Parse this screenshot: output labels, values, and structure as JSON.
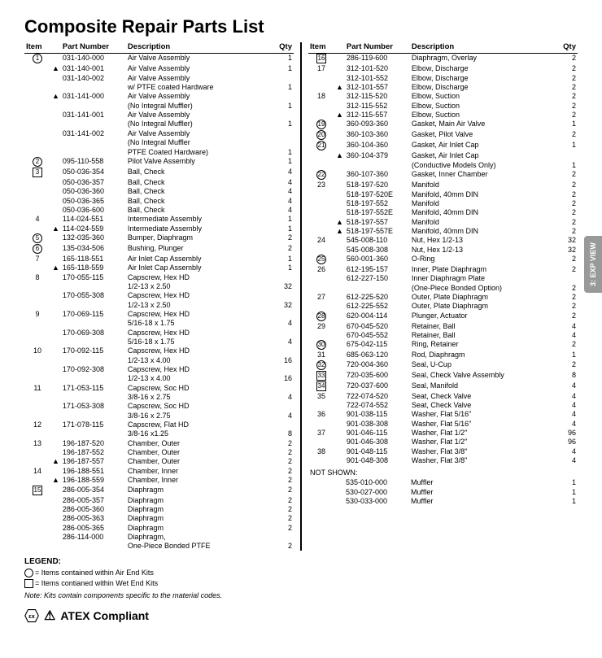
{
  "title": "Composite Repair Parts List",
  "headers": {
    "item": "Item",
    "pn": "Part Number",
    "desc": "Description",
    "qty": "Qty"
  },
  "left": [
    {
      "i": "1",
      "m": "circ",
      "a": "",
      "p": "031-140-000",
      "d": "Air Valve Assembly",
      "q": "1"
    },
    {
      "i": "",
      "m": "",
      "a": "A",
      "p": "031-140-001",
      "d": "Air Valve Assembly",
      "q": "1"
    },
    {
      "i": "",
      "m": "",
      "a": "",
      "p": "031-140-002",
      "d": "Air Valve Assembly",
      "q": ""
    },
    {
      "i": "",
      "m": "",
      "a": "",
      "p": "",
      "d": "w/ PTFE coated Hardware",
      "q": "1"
    },
    {
      "i": "",
      "m": "",
      "a": "A",
      "p": "031-141-000",
      "d": "Air Valve Assembly",
      "q": ""
    },
    {
      "i": "",
      "m": "",
      "a": "",
      "p": "",
      "d": "(No Integral Muffler)",
      "q": "1"
    },
    {
      "i": "",
      "m": "",
      "a": "",
      "p": "031-141-001",
      "d": "Air Valve Assembly",
      "q": ""
    },
    {
      "i": "",
      "m": "",
      "a": "",
      "p": "",
      "d": "(No Integral Muffler)",
      "q": "1"
    },
    {
      "i": "",
      "m": "",
      "a": "",
      "p": "031-141-002",
      "d": "Air Valve Assembly",
      "q": ""
    },
    {
      "i": "",
      "m": "",
      "a": "",
      "p": "",
      "d": "(No Integral Muffler",
      "q": ""
    },
    {
      "i": "",
      "m": "",
      "a": "",
      "p": "",
      "d": "PTFE Coated Hardware)",
      "q": "1"
    },
    {
      "i": "2",
      "m": "circ",
      "a": "",
      "p": "095-110-558",
      "d": "Pilot Valve Assembly",
      "q": "1"
    },
    {
      "i": "3",
      "m": "sq",
      "a": "",
      "p": "050-036-354",
      "d": "Ball, Check",
      "q": "4"
    },
    {
      "i": "",
      "m": "",
      "a": "",
      "p": "050-036-357",
      "d": "Ball, Check",
      "q": "4"
    },
    {
      "i": "",
      "m": "",
      "a": "",
      "p": "050-036-360",
      "d": "Ball, Check",
      "q": "4"
    },
    {
      "i": "",
      "m": "",
      "a": "",
      "p": "050-036-365",
      "d": "Ball, Check",
      "q": "4"
    },
    {
      "i": "",
      "m": "",
      "a": "",
      "p": "050-036-600",
      "d": "Ball, Check",
      "q": "4"
    },
    {
      "i": "4",
      "m": "",
      "a": "",
      "p": "114-024-551",
      "d": "Intermediate Assembly",
      "q": "1"
    },
    {
      "i": "",
      "m": "",
      "a": "A",
      "p": "114-024-559",
      "d": "Intermediate Assembly",
      "q": "1"
    },
    {
      "i": "5",
      "m": "circ",
      "a": "",
      "p": "132-035-360",
      "d": "Bumper, Diaphragm",
      "q": "2"
    },
    {
      "i": "6",
      "m": "circ",
      "a": "",
      "p": "135-034-506",
      "d": "Bushing, Plunger",
      "q": "2"
    },
    {
      "i": "7",
      "m": "",
      "a": "",
      "p": "165-118-551",
      "d": "Air Inlet Cap Assembly",
      "q": "1"
    },
    {
      "i": "",
      "m": "",
      "a": "A",
      "p": "165-118-559",
      "d": "Air Inlet Cap Assembly",
      "q": "1"
    },
    {
      "i": "8",
      "m": "",
      "a": "",
      "p": "170-055-115",
      "d": "Capscrew, Hex HD",
      "q": ""
    },
    {
      "i": "",
      "m": "",
      "a": "",
      "p": "",
      "d": "1/2-13 x 2.50",
      "q": "32"
    },
    {
      "i": "",
      "m": "",
      "a": "",
      "p": "170-055-308",
      "d": "Capscrew, Hex HD",
      "q": ""
    },
    {
      "i": "",
      "m": "",
      "a": "",
      "p": "",
      "d": "1/2-13 x 2.50",
      "q": "32"
    },
    {
      "i": "9",
      "m": "",
      "a": "",
      "p": "170-069-115",
      "d": "Capscrew, Hex HD",
      "q": ""
    },
    {
      "i": "",
      "m": "",
      "a": "",
      "p": "",
      "d": "5/16-18 x 1.75",
      "q": "4"
    },
    {
      "i": "",
      "m": "",
      "a": "",
      "p": "170-069-308",
      "d": "Capscrew, Hex HD",
      "q": ""
    },
    {
      "i": "",
      "m": "",
      "a": "",
      "p": "",
      "d": "5/16-18 x 1.75",
      "q": "4"
    },
    {
      "i": "10",
      "m": "",
      "a": "",
      "p": "170-092-115",
      "d": "Capscrew, Hex HD",
      "q": ""
    },
    {
      "i": "",
      "m": "",
      "a": "",
      "p": "",
      "d": "1/2-13 x 4.00",
      "q": "16"
    },
    {
      "i": "",
      "m": "",
      "a": "",
      "p": "170-092-308",
      "d": "Capscrew, Hex HD",
      "q": ""
    },
    {
      "i": "",
      "m": "",
      "a": "",
      "p": "",
      "d": "1/2-13 x 4.00",
      "q": "16"
    },
    {
      "i": "11",
      "m": "",
      "a": "",
      "p": "171-053-115",
      "d": "Capscrew, Soc HD",
      "q": ""
    },
    {
      "i": "",
      "m": "",
      "a": "",
      "p": "",
      "d": "3/8-16 x 2.75",
      "q": "4"
    },
    {
      "i": "",
      "m": "",
      "a": "",
      "p": "171-053-308",
      "d": "Capscrew, Soc HD",
      "q": ""
    },
    {
      "i": "",
      "m": "",
      "a": "",
      "p": "",
      "d": "3/8-16 x 2.75",
      "q": "4"
    },
    {
      "i": "12",
      "m": "",
      "a": "",
      "p": "171-078-115",
      "d": "Capscrew, Flat HD",
      "q": ""
    },
    {
      "i": "",
      "m": "",
      "a": "",
      "p": "",
      "d": "3/8-16 x1.25",
      "q": "8"
    },
    {
      "i": "13",
      "m": "",
      "a": "",
      "p": "196-187-520",
      "d": "Chamber, Outer",
      "q": "2"
    },
    {
      "i": "",
      "m": "",
      "a": "",
      "p": "196-187-552",
      "d": "Chamber, Outer",
      "q": "2"
    },
    {
      "i": "",
      "m": "",
      "a": "A",
      "p": "196-187-557",
      "d": "Chamber, Outer",
      "q": "2"
    },
    {
      "i": "14",
      "m": "",
      "a": "",
      "p": "196-188-551",
      "d": "Chamber, Inner",
      "q": "2"
    },
    {
      "i": "",
      "m": "",
      "a": "A",
      "p": "196-188-559",
      "d": "Chamber, Inner",
      "q": "2"
    },
    {
      "i": "15",
      "m": "sq",
      "a": "",
      "p": "286-005-354",
      "d": "Diaphragm",
      "q": "2"
    },
    {
      "i": "",
      "m": "",
      "a": "",
      "p": "286-005-357",
      "d": "Diaphragm",
      "q": "2"
    },
    {
      "i": "",
      "m": "",
      "a": "",
      "p": "286-005-360",
      "d": "Diaphragm",
      "q": "2"
    },
    {
      "i": "",
      "m": "",
      "a": "",
      "p": "286-005-363",
      "d": "Diaphragm",
      "q": "2"
    },
    {
      "i": "",
      "m": "",
      "a": "",
      "p": "286-005-365",
      "d": "Diaphragm",
      "q": "2"
    },
    {
      "i": "",
      "m": "",
      "a": "",
      "p": "286-114-000",
      "d": "Diaphragm,",
      "q": ""
    },
    {
      "i": "",
      "m": "",
      "a": "",
      "p": "",
      "d": "One-Piece Bonded PTFE",
      "q": "2"
    }
  ],
  "right": [
    {
      "i": "16",
      "m": "sq",
      "a": "",
      "p": "286-119-600",
      "d": "Diaphragm, Overlay",
      "q": "2"
    },
    {
      "i": "17",
      "m": "",
      "a": "",
      "p": "312-101-520",
      "d": "Elbow, Discharge",
      "q": "2"
    },
    {
      "i": "",
      "m": "",
      "a": "",
      "p": "312-101-552",
      "d": "Elbow, Discharge",
      "q": "2"
    },
    {
      "i": "",
      "m": "",
      "a": "A",
      "p": "312-101-557",
      "d": "Elbow, Discharge",
      "q": "2"
    },
    {
      "i": "18",
      "m": "",
      "a": "",
      "p": "312-115-520",
      "d": "Elbow, Suction",
      "q": "2"
    },
    {
      "i": "",
      "m": "",
      "a": "",
      "p": "312-115-552",
      "d": "Elbow, Suction",
      "q": "2"
    },
    {
      "i": "",
      "m": "",
      "a": "A",
      "p": "312-115-557",
      "d": "Elbow, Suction",
      "q": "2"
    },
    {
      "i": "19",
      "m": "circ",
      "a": "",
      "p": "360-093-360",
      "d": "Gasket, Main Air Valve",
      "q": "1"
    },
    {
      "i": "20",
      "m": "circ",
      "a": "",
      "p": "360-103-360",
      "d": "Gasket, Pilot Valve",
      "q": "2"
    },
    {
      "i": "21",
      "m": "circ",
      "a": "",
      "p": "360-104-360",
      "d": "Gasket, Air Inlet Cap",
      "q": "1"
    },
    {
      "i": "",
      "m": "",
      "a": "A",
      "p": "360-104-379",
      "d": "Gasket, Air Inlet Cap",
      "q": ""
    },
    {
      "i": "",
      "m": "",
      "a": "",
      "p": "",
      "d": "(Conductive Models Only)",
      "q": "1"
    },
    {
      "i": "22",
      "m": "circ",
      "a": "",
      "p": "360-107-360",
      "d": "Gasket, Inner Chamber",
      "q": "2"
    },
    {
      "i": "23",
      "m": "",
      "a": "",
      "p": "518-197-520",
      "d": "Manifold",
      "q": "2"
    },
    {
      "i": "",
      "m": "",
      "a": "",
      "p": "518-197-520E",
      "d": "Manifold, 40mm DIN",
      "q": "2"
    },
    {
      "i": "",
      "m": "",
      "a": "",
      "p": "518-197-552",
      "d": "Manifold",
      "q": "2"
    },
    {
      "i": "",
      "m": "",
      "a": "",
      "p": "518-197-552E",
      "d": "Manifold, 40mm DIN",
      "q": "2"
    },
    {
      "i": "",
      "m": "",
      "a": "A",
      "p": "518-197-557",
      "d": "Manifold",
      "q": "2"
    },
    {
      "i": "",
      "m": "",
      "a": "A",
      "p": "518-197-557E",
      "d": "Manifold, 40mm DIN",
      "q": "2"
    },
    {
      "i": "24",
      "m": "",
      "a": "",
      "p": "545-008-110",
      "d": "Nut, Hex 1/2-13",
      "q": "32"
    },
    {
      "i": "",
      "m": "",
      "a": "",
      "p": "545-008-308",
      "d": "Nut, Hex 1/2-13",
      "q": "32"
    },
    {
      "i": "25",
      "m": "circ",
      "a": "",
      "p": "560-001-360",
      "d": "O-Ring",
      "q": "2"
    },
    {
      "i": "26",
      "m": "",
      "a": "",
      "p": "612-195-157",
      "d": "Inner, Plate Diaphragm",
      "q": "2"
    },
    {
      "i": "",
      "m": "",
      "a": "",
      "p": "612-227-150",
      "d": "Inner Diaphragm Plate",
      "q": ""
    },
    {
      "i": "",
      "m": "",
      "a": "",
      "p": "",
      "d": "(One-Piece Bonded Option)",
      "q": "2"
    },
    {
      "i": "27",
      "m": "",
      "a": "",
      "p": "612-225-520",
      "d": "Outer, Plate Diaphragm",
      "q": "2"
    },
    {
      "i": "",
      "m": "",
      "a": "",
      "p": "612-225-552",
      "d": "Outer, Plate Diaphragm",
      "q": "2"
    },
    {
      "i": "28",
      "m": "circ",
      "a": "",
      "p": "620-004-114",
      "d": "Plunger, Actuator",
      "q": "2"
    },
    {
      "i": "29",
      "m": "",
      "a": "",
      "p": "670-045-520",
      "d": "Retainer, Ball",
      "q": "4"
    },
    {
      "i": "",
      "m": "",
      "a": "",
      "p": "670-045-552",
      "d": "Retainer, Ball",
      "q": "4"
    },
    {
      "i": "30",
      "m": "circ",
      "a": "",
      "p": "675-042-115",
      "d": "Ring, Retainer",
      "q": "2"
    },
    {
      "i": "31",
      "m": "",
      "a": "",
      "p": "685-063-120",
      "d": "Rod, Diaphragm",
      "q": "1"
    },
    {
      "i": "32",
      "m": "circ",
      "a": "",
      "p": "720-004-360",
      "d": "Seal, U-Cup",
      "q": "2"
    },
    {
      "i": "33",
      "m": "sq",
      "a": "",
      "p": "720-035-600",
      "d": "Seal, Check Valve Assembly",
      "q": "8"
    },
    {
      "i": "34",
      "m": "sq",
      "a": "",
      "p": "720-037-600",
      "d": "Seal, Manifold",
      "q": "4"
    },
    {
      "i": "35",
      "m": "",
      "a": "",
      "p": "722-074-520",
      "d": "Seat, Check Valve",
      "q": "4"
    },
    {
      "i": "",
      "m": "",
      "a": "",
      "p": "722-074-552",
      "d": "Seat, Check Valve",
      "q": "4"
    },
    {
      "i": "36",
      "m": "",
      "a": "",
      "p": "901-038-115",
      "d": "Washer, Flat 5/16\"",
      "q": "4"
    },
    {
      "i": "",
      "m": "",
      "a": "",
      "p": "901-038-308",
      "d": "Washer, Flat 5/16\"",
      "q": "4"
    },
    {
      "i": "37",
      "m": "",
      "a": "",
      "p": "901-046-115",
      "d": "Washer, Flat 1/2\"",
      "q": "96"
    },
    {
      "i": "",
      "m": "",
      "a": "",
      "p": "901-046-308",
      "d": "Washer, Flat 1/2\"",
      "q": "96"
    },
    {
      "i": "38",
      "m": "",
      "a": "",
      "p": "901-048-115",
      "d": "Washer, Flat 3/8\"",
      "q": "4"
    },
    {
      "i": "",
      "m": "",
      "a": "",
      "p": "901-048-308",
      "d": "Washer, Flat 3/8\"",
      "q": "4"
    }
  ],
  "notshown_label": "NOT SHOWN:",
  "notshown": [
    {
      "p": "535-010-000",
      "d": "Muffler",
      "q": "1"
    },
    {
      "p": "530-027-000",
      "d": "Muffler",
      "q": "1"
    },
    {
      "p": "530-033-000",
      "d": "Muffler",
      "q": "1"
    }
  ],
  "legend": {
    "title": "LEGEND:",
    "l1": "= Items contained within Air End Kits",
    "l2": "= Items contianed within Wet End Kits",
    "note": "Note: Kits contain components specific to the material codes."
  },
  "atex": "ATEX Compliant",
  "sidetab": "3: EXP VIEW"
}
